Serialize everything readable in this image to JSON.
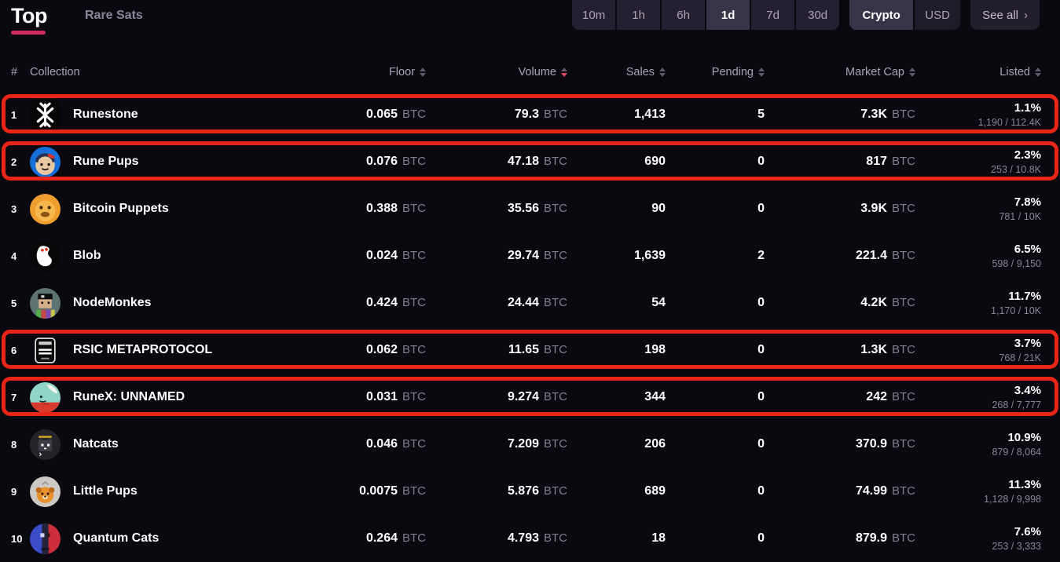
{
  "header": {
    "tabs": [
      {
        "label": "Top",
        "active": true
      },
      {
        "label": "Rare Sats",
        "active": false
      }
    ],
    "time_filters": [
      {
        "label": "10m",
        "active": false
      },
      {
        "label": "1h",
        "active": false
      },
      {
        "label": "6h",
        "active": false
      },
      {
        "label": "1d",
        "active": true
      },
      {
        "label": "7d",
        "active": false
      },
      {
        "label": "30d",
        "active": false
      }
    ],
    "currency_toggle": [
      {
        "label": "Crypto",
        "active": true
      },
      {
        "label": "USD",
        "active": false
      }
    ],
    "see_all_label": "See all",
    "see_all_chevron": "›"
  },
  "table": {
    "columns": [
      {
        "label": "#",
        "sortable": false
      },
      {
        "label": "Collection",
        "sortable": false
      },
      {
        "label": "Floor",
        "sortable": true
      },
      {
        "label": "Volume",
        "sortable": true
      },
      {
        "label": "Sales",
        "sortable": true
      },
      {
        "label": "Pending",
        "sortable": true
      },
      {
        "label": "Market Cap",
        "sortable": true
      },
      {
        "label": "Listed",
        "sortable": true
      }
    ],
    "sort": {
      "column": "Volume",
      "direction": "desc"
    },
    "currency_unit": "BTC",
    "rows": [
      {
        "rank": "1",
        "name": "Runestone",
        "icon": "runestone-icon",
        "floor": "0.065",
        "volume": "79.3",
        "sales": "1,413",
        "pending": "5",
        "market_cap": "7.3K",
        "listed_pct": "1.1%",
        "listed_ratio": "1,190 / 112.4K",
        "highlighted": true
      },
      {
        "rank": "2",
        "name": "Rune Pups",
        "icon": "rune-pups-icon",
        "floor": "0.076",
        "volume": "47.18",
        "sales": "690",
        "pending": "0",
        "market_cap": "817",
        "listed_pct": "2.3%",
        "listed_ratio": "253 / 10.8K",
        "highlighted": true
      },
      {
        "rank": "3",
        "name": "Bitcoin Puppets",
        "icon": "bitcoin-puppets-icon",
        "floor": "0.388",
        "volume": "35.56",
        "sales": "90",
        "pending": "0",
        "market_cap": "3.9K",
        "listed_pct": "7.8%",
        "listed_ratio": "781 / 10K",
        "highlighted": false
      },
      {
        "rank": "4",
        "name": "Blob",
        "icon": "blob-icon",
        "floor": "0.024",
        "volume": "29.74",
        "sales": "1,639",
        "pending": "2",
        "market_cap": "221.4",
        "listed_pct": "6.5%",
        "listed_ratio": "598 / 9,150",
        "highlighted": false
      },
      {
        "rank": "5",
        "name": "NodeMonkes",
        "icon": "nodemonkes-icon",
        "floor": "0.424",
        "volume": "24.44",
        "sales": "54",
        "pending": "0",
        "market_cap": "4.2K",
        "listed_pct": "11.7%",
        "listed_ratio": "1,170 / 10K",
        "highlighted": false
      },
      {
        "rank": "6",
        "name": "RSIC METAPROTOCOL",
        "icon": "rsic-icon",
        "floor": "0.062",
        "volume": "11.65",
        "sales": "198",
        "pending": "0",
        "market_cap": "1.3K",
        "listed_pct": "3.7%",
        "listed_ratio": "768 / 21K",
        "highlighted": true
      },
      {
        "rank": "7",
        "name": "RuneX: UNNAMED",
        "icon": "runex-icon",
        "floor": "0.031",
        "volume": "9.274",
        "sales": "344",
        "pending": "0",
        "market_cap": "242",
        "listed_pct": "3.4%",
        "listed_ratio": "268 / 7,777",
        "highlighted": true
      },
      {
        "rank": "8",
        "name": "Natcats",
        "icon": "natcats-icon",
        "floor": "0.046",
        "volume": "7.209",
        "sales": "206",
        "pending": "0",
        "market_cap": "370.9",
        "listed_pct": "10.9%",
        "listed_ratio": "879 / 8,064",
        "highlighted": false
      },
      {
        "rank": "9",
        "name": "Little Pups",
        "icon": "little-pups-icon",
        "floor": "0.0075",
        "volume": "5.876",
        "sales": "689",
        "pending": "0",
        "market_cap": "74.99",
        "listed_pct": "11.3%",
        "listed_ratio": "1,128 / 9,998",
        "highlighted": false
      },
      {
        "rank": "10",
        "name": "Quantum Cats",
        "icon": "quantum-cats-icon",
        "floor": "0.264",
        "volume": "4.793",
        "sales": "18",
        "pending": "0",
        "market_cap": "879.9",
        "listed_pct": "7.6%",
        "listed_ratio": "253 / 3,333",
        "highlighted": false
      }
    ]
  },
  "colors": {
    "background": "#0b0910",
    "accent_pink": "#cf2c60",
    "highlight_red": "#e92517",
    "sort_active": "#e0485e",
    "button_bg": "#252031",
    "button_active_bg": "#393349"
  }
}
